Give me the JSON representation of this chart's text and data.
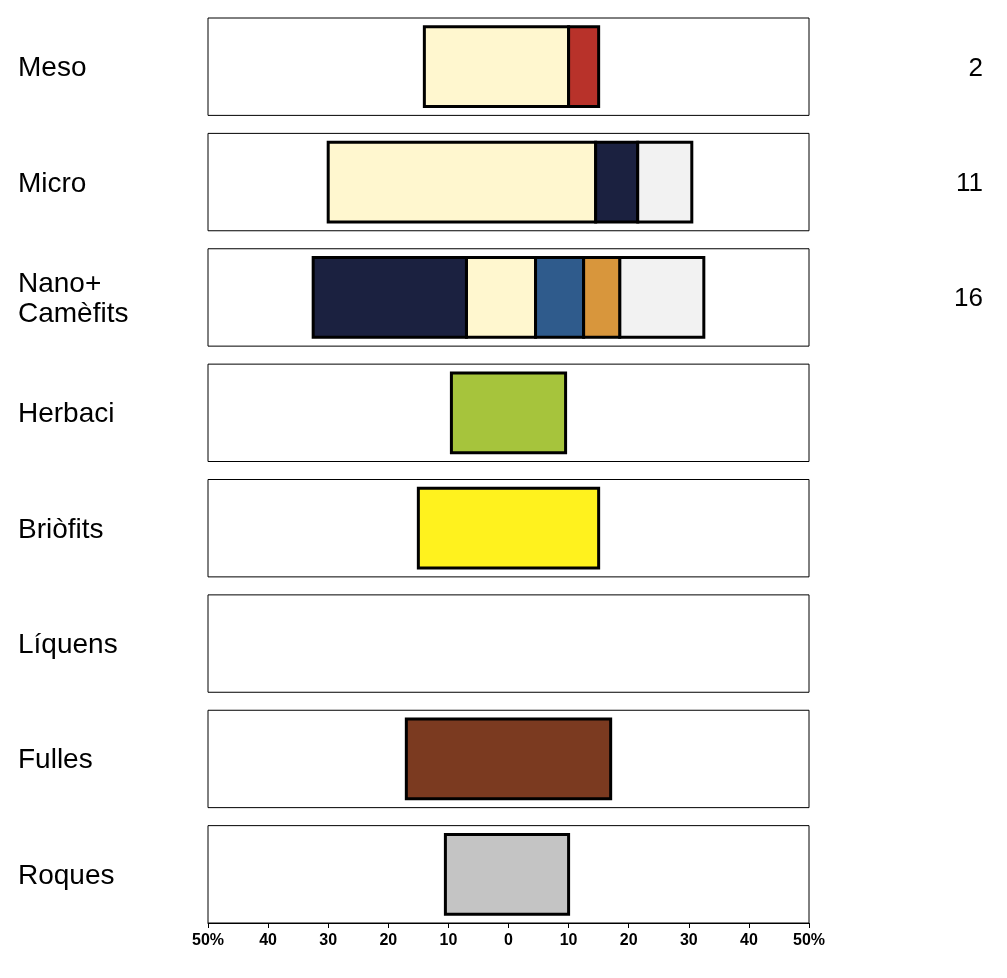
{
  "chart_data": {
    "type": "bar",
    "orientation": "horizontal",
    "categories": [
      "Meso",
      "Micro",
      "Nano+ Camèfits",
      "Herbaci",
      "Briòfits",
      "Líquens",
      "Fulles",
      "Roques"
    ],
    "xlim": [
      -50,
      50
    ],
    "xticks": [
      {
        "value": -50,
        "label": "50%"
      },
      {
        "value": -40,
        "label": "40"
      },
      {
        "value": -30,
        "label": "30"
      },
      {
        "value": -20,
        "label": "20"
      },
      {
        "value": -10,
        "label": "10"
      },
      0,
      {
        "value": 10,
        "label": "10"
      },
      {
        "value": 20,
        "label": "20"
      },
      {
        "value": 30,
        "label": "30"
      },
      {
        "value": 40,
        "label": "40"
      },
      {
        "value": 50,
        "label": "50%"
      }
    ],
    "grid": false,
    "annotations": [
      "2",
      "11",
      "16"
    ],
    "series": [
      {
        "color": "#fff7cf",
        "base": [
          -14,
          -30,
          -7,
          null,
          null,
          null,
          null,
          null
        ],
        "values": [
          24,
          44.5,
          11.5,
          null,
          null,
          null,
          null,
          null
        ]
      },
      {
        "color": "#b8322a",
        "base": [
          10,
          null,
          null,
          null,
          null,
          null,
          null,
          null
        ],
        "values": [
          5,
          null,
          null,
          null,
          null,
          null,
          null,
          null
        ]
      },
      {
        "color": "#1b2140",
        "base": [
          null,
          14.5,
          -32.5,
          null,
          null,
          null,
          null,
          null
        ],
        "values": [
          null,
          7,
          25.5,
          null,
          null,
          null,
          null,
          null
        ]
      },
      {
        "color": "#f2f2f2",
        "base": [
          null,
          21.5,
          18.5,
          null,
          null,
          null,
          null,
          null
        ],
        "values": [
          null,
          9,
          14,
          null,
          null,
          null,
          null,
          null
        ]
      },
      {
        "color": "#2f5b8c",
        "base": [
          null,
          null,
          4.5,
          null,
          null,
          null,
          null,
          null
        ],
        "values": [
          null,
          null,
          8,
          null,
          null,
          null,
          null,
          null
        ]
      },
      {
        "color": "#d8963c",
        "base": [
          null,
          null,
          12.5,
          null,
          null,
          null,
          null,
          null
        ],
        "values": [
          null,
          null,
          6,
          null,
          null,
          null,
          null,
          null
        ]
      },
      {
        "color": "#a6c43c",
        "base": [
          null,
          null,
          null,
          -9.5,
          null,
          null,
          null,
          null
        ],
        "values": [
          null,
          null,
          null,
          19,
          null,
          null,
          null,
          null
        ]
      },
      {
        "color": "#fff21e",
        "base": [
          null,
          null,
          null,
          null,
          -15,
          null,
          null,
          null
        ],
        "values": [
          null,
          null,
          null,
          null,
          30,
          null,
          null,
          null
        ]
      },
      {
        "color": "#7b3a20",
        "base": [
          null,
          null,
          null,
          null,
          null,
          null,
          -17,
          null
        ],
        "values": [
          null,
          null,
          null,
          null,
          null,
          null,
          34,
          null
        ]
      },
      {
        "color": "#c4c4c4",
        "base": [
          null,
          null,
          null,
          null,
          null,
          null,
          null,
          -10.5
        ],
        "values": [
          null,
          null,
          null,
          null,
          null,
          null,
          null,
          20.5
        ]
      }
    ]
  }
}
